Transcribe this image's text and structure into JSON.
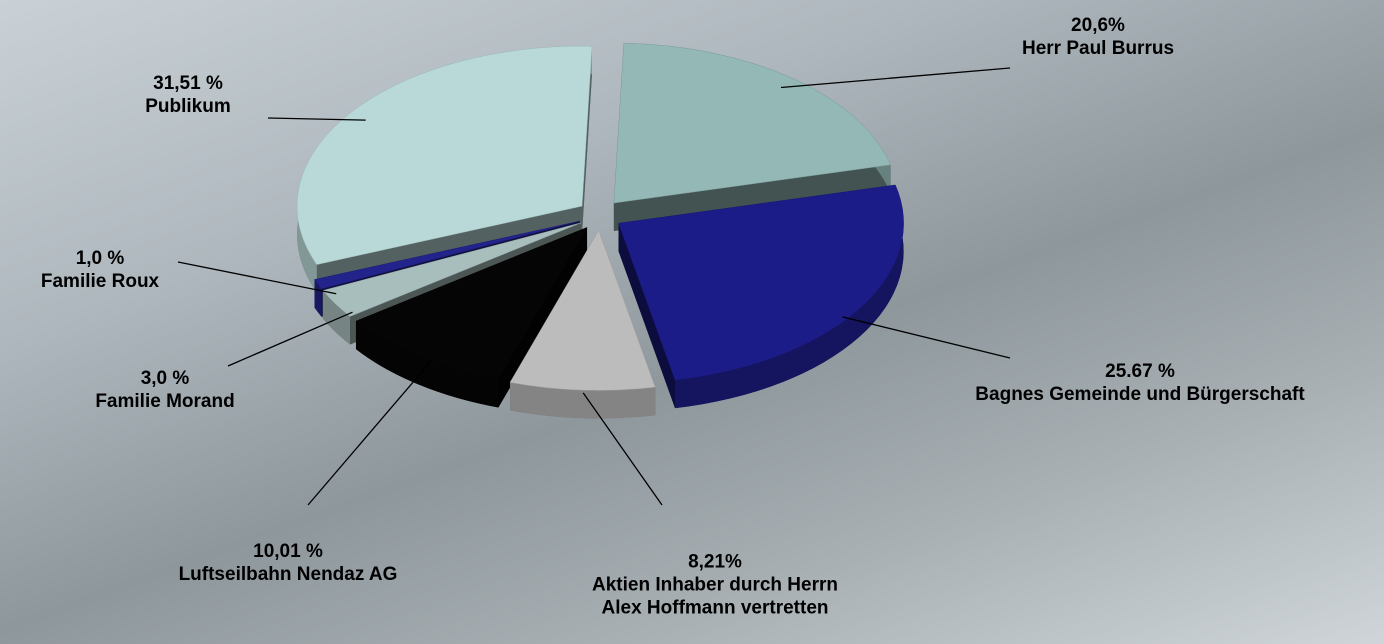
{
  "chart_data": {
    "type": "pie3d",
    "categories": [
      "Herr Paul Burrus",
      "Bagnes Gemeinde und Bürgerschaft",
      "Aktien Inhaber durch Herrn Alex Hoffmann vertretten",
      "Luftseilbahn Nendaz AG",
      "Familie Morand",
      "Familie Roux",
      "Publikum"
    ],
    "values": [
      20.6,
      25.67,
      8.21,
      10.01,
      3.0,
      1.0,
      31.51
    ],
    "value_labels": [
      "20,6%",
      "25.67 %",
      "8,21%",
      "10,01 %",
      "3,0 %",
      "1,0 %",
      "31,51 %"
    ],
    "colors": [
      "#93b8b6",
      "#1c1c88",
      "#bcbcbc",
      "#050505",
      "#a8bebd",
      "#23238c",
      "#b9d9d8"
    ]
  }
}
